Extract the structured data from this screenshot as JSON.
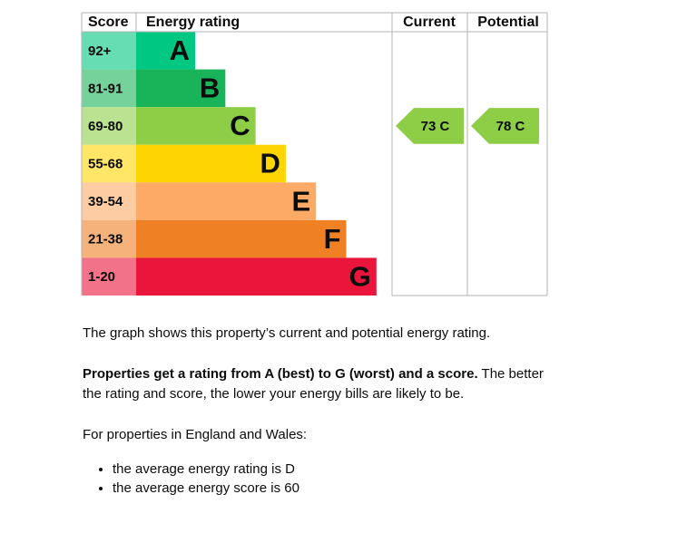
{
  "chart": {
    "headers": [
      "Score",
      "Energy rating",
      "Current",
      "Potential"
    ],
    "bands": [
      {
        "score": "92+",
        "rating": "A",
        "color": "#00c781"
      },
      {
        "score": "81-91",
        "rating": "B",
        "color": "#19b459"
      },
      {
        "score": "69-80",
        "rating": "C",
        "color": "#8dce46"
      },
      {
        "score": "55-68",
        "rating": "D",
        "color": "#ffd500"
      },
      {
        "score": "39-54",
        "rating": "E",
        "color": "#fcaa65"
      },
      {
        "score": "21-38",
        "rating": "F",
        "color": "#ef8023"
      },
      {
        "score": "1-20",
        "rating": "G",
        "color": "#e9153b"
      }
    ],
    "current": {
      "label": "73 C",
      "color": "#8dce46"
    },
    "potential": {
      "label": "78 C",
      "color": "#8dce46"
    }
  },
  "text": {
    "intro": "The graph shows this property’s current and potential energy rating.",
    "rating_bold": "Properties get a rating from A (best) to G (worst) and a score.",
    "rating_rest": "The better the rating and score, the lower your energy bills are likely to be.",
    "england": "For properties in England and Wales:",
    "list": [
      "the average energy rating is D",
      "the average energy score is 60"
    ]
  }
}
